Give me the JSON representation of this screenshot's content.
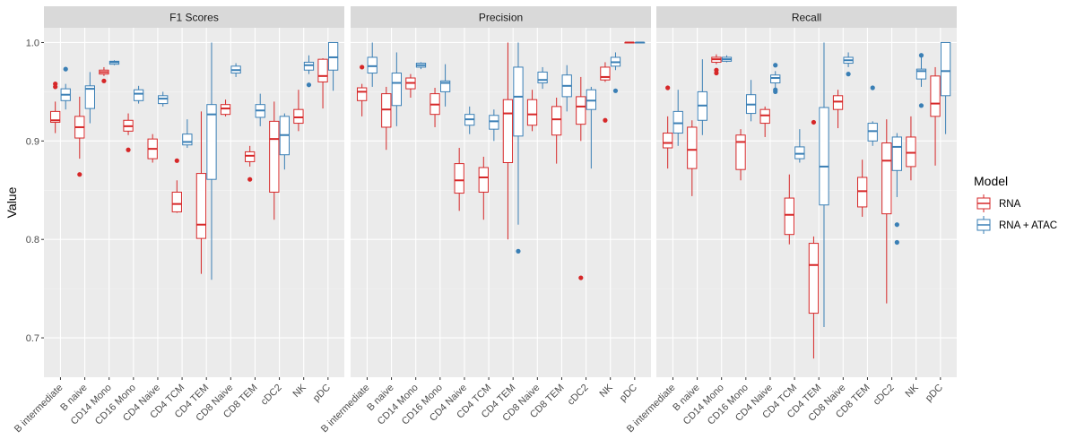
{
  "chart_data": {
    "type": "boxplot",
    "ylabel": "Value",
    "xlabel": "",
    "ylim": [
      0.66,
      1.015
    ],
    "yticks": [
      0.7,
      0.8,
      0.9,
      1.0
    ],
    "ytick_labels": [
      "0.7",
      "0.8",
      "0.9",
      "1.0"
    ],
    "categories": [
      "B intermediate",
      "B naive",
      "CD14 Mono",
      "CD16 Mono",
      "CD4 Naive",
      "CD4 TCM",
      "CD4 TEM",
      "CD8 Naive",
      "CD8 TEM",
      "cDC2",
      "NK",
      "pDC"
    ],
    "legend": {
      "title": "Model",
      "position": "right"
    },
    "series": [
      {
        "name": "RNA",
        "color": "#d62728"
      },
      {
        "name": "RNA + ATAC",
        "color": "#3a7fb5"
      }
    ],
    "panels": [
      {
        "title": "F1 Scores",
        "boxes": {
          "RNA": [
            {
              "min": 0.908,
              "q1": 0.919,
              "median": 0.921,
              "q3": 0.93,
              "max": 0.94,
              "outliers": [
                0.958,
                0.955
              ]
            },
            {
              "min": 0.882,
              "q1": 0.903,
              "median": 0.914,
              "q3": 0.925,
              "max": 0.945,
              "outliers": [
                0.866
              ]
            },
            {
              "min": 0.966,
              "q1": 0.968,
              "median": 0.97,
              "q3": 0.972,
              "max": 0.975,
              "outliers": [
                0.961
              ]
            },
            {
              "min": 0.906,
              "q1": 0.91,
              "median": 0.915,
              "q3": 0.921,
              "max": 0.928,
              "outliers": [
                0.891
              ]
            },
            {
              "min": 0.878,
              "q1": 0.882,
              "median": 0.892,
              "q3": 0.902,
              "max": 0.907,
              "outliers": []
            },
            {
              "min": 0.827,
              "q1": 0.828,
              "median": 0.836,
              "q3": 0.848,
              "max": 0.86,
              "outliers": [
                0.88
              ]
            },
            {
              "min": 0.765,
              "q1": 0.801,
              "median": 0.815,
              "q3": 0.867,
              "max": 0.93,
              "outliers": []
            },
            {
              "min": 0.925,
              "q1": 0.927,
              "median": 0.933,
              "q3": 0.937,
              "max": 0.942,
              "outliers": []
            },
            {
              "min": 0.874,
              "q1": 0.879,
              "median": 0.885,
              "q3": 0.889,
              "max": 0.895,
              "outliers": [
                0.861
              ]
            },
            {
              "min": 0.82,
              "q1": 0.848,
              "median": 0.902,
              "q3": 0.92,
              "max": 0.94,
              "outliers": []
            },
            {
              "min": 0.91,
              "q1": 0.918,
              "median": 0.924,
              "q3": 0.932,
              "max": 0.952,
              "outliers": []
            },
            {
              "min": 0.933,
              "q1": 0.96,
              "median": 0.966,
              "q3": 0.983,
              "max": 0.984,
              "outliers": []
            }
          ],
          "RNA + ATAC": [
            {
              "min": 0.932,
              "q1": 0.941,
              "median": 0.947,
              "q3": 0.953,
              "max": 0.958,
              "outliers": [
                0.973
              ]
            },
            {
              "min": 0.918,
              "q1": 0.933,
              "median": 0.953,
              "q3": 0.956,
              "max": 0.97,
              "outliers": []
            },
            {
              "min": 0.977,
              "q1": 0.978,
              "median": 0.98,
              "q3": 0.981,
              "max": 0.982,
              "outliers": []
            },
            {
              "min": 0.938,
              "q1": 0.941,
              "median": 0.948,
              "q3": 0.952,
              "max": 0.956,
              "outliers": []
            },
            {
              "min": 0.935,
              "q1": 0.938,
              "median": 0.943,
              "q3": 0.946,
              "max": 0.95,
              "outliers": []
            },
            {
              "min": 0.893,
              "q1": 0.896,
              "median": 0.899,
              "q3": 0.907,
              "max": 0.922,
              "outliers": []
            },
            {
              "min": 0.759,
              "q1": 0.861,
              "median": 0.927,
              "q3": 0.937,
              "max": 1.0,
              "outliers": []
            },
            {
              "min": 0.965,
              "q1": 0.969,
              "median": 0.972,
              "q3": 0.976,
              "max": 0.979,
              "outliers": []
            },
            {
              "min": 0.915,
              "q1": 0.924,
              "median": 0.931,
              "q3": 0.937,
              "max": 0.948,
              "outliers": []
            },
            {
              "min": 0.871,
              "q1": 0.886,
              "median": 0.906,
              "q3": 0.925,
              "max": 0.928,
              "outliers": []
            },
            {
              "min": 0.968,
              "q1": 0.972,
              "median": 0.977,
              "q3": 0.98,
              "max": 0.987,
              "outliers": [
                0.957
              ]
            },
            {
              "min": 0.951,
              "q1": 0.972,
              "median": 0.985,
              "q3": 1.0,
              "max": 1.0,
              "outliers": []
            }
          ]
        }
      },
      {
        "title": "Precision",
        "boxes": {
          "RNA": [
            {
              "min": 0.925,
              "q1": 0.941,
              "median": 0.95,
              "q3": 0.954,
              "max": 0.958,
              "outliers": [
                0.975
              ]
            },
            {
              "min": 0.891,
              "q1": 0.914,
              "median": 0.932,
              "q3": 0.948,
              "max": 0.955,
              "outliers": []
            },
            {
              "min": 0.944,
              "q1": 0.953,
              "median": 0.959,
              "q3": 0.964,
              "max": 0.968,
              "outliers": []
            },
            {
              "min": 0.914,
              "q1": 0.927,
              "median": 0.937,
              "q3": 0.948,
              "max": 0.954,
              "outliers": []
            },
            {
              "min": 0.829,
              "q1": 0.847,
              "median": 0.86,
              "q3": 0.877,
              "max": 0.893,
              "outliers": []
            },
            {
              "min": 0.82,
              "q1": 0.848,
              "median": 0.863,
              "q3": 0.873,
              "max": 0.884,
              "outliers": []
            },
            {
              "min": 0.8,
              "q1": 0.878,
              "median": 0.928,
              "q3": 0.942,
              "max": 1.0,
              "outliers": []
            },
            {
              "min": 0.91,
              "q1": 0.916,
              "median": 0.927,
              "q3": 0.942,
              "max": 0.952,
              "outliers": []
            },
            {
              "min": 0.877,
              "q1": 0.906,
              "median": 0.922,
              "q3": 0.935,
              "max": 0.944,
              "outliers": []
            },
            {
              "min": 0.9,
              "q1": 0.917,
              "median": 0.935,
              "q3": 0.945,
              "max": 0.965,
              "outliers": [
                0.761
              ]
            },
            {
              "min": 0.96,
              "q1": 0.962,
              "median": 0.965,
              "q3": 0.975,
              "max": 0.98,
              "outliers": [
                0.921
              ]
            },
            {
              "min": 1.0,
              "q1": 1.0,
              "median": 1.0,
              "q3": 1.0,
              "max": 1.0,
              "outliers": []
            }
          ],
          "RNA + ATAC": [
            {
              "min": 0.955,
              "q1": 0.969,
              "median": 0.976,
              "q3": 0.985,
              "max": 1.0,
              "outliers": []
            },
            {
              "min": 0.915,
              "q1": 0.936,
              "median": 0.959,
              "q3": 0.969,
              "max": 0.99,
              "outliers": []
            },
            {
              "min": 0.973,
              "q1": 0.975,
              "median": 0.977,
              "q3": 0.979,
              "max": 0.98,
              "outliers": []
            },
            {
              "min": 0.935,
              "q1": 0.95,
              "median": 0.959,
              "q3": 0.961,
              "max": 0.978,
              "outliers": []
            },
            {
              "min": 0.907,
              "q1": 0.916,
              "median": 0.922,
              "q3": 0.927,
              "max": 0.935,
              "outliers": []
            },
            {
              "min": 0.9,
              "q1": 0.912,
              "median": 0.92,
              "q3": 0.926,
              "max": 0.932,
              "outliers": []
            },
            {
              "min": 0.815,
              "q1": 0.905,
              "median": 0.945,
              "q3": 0.975,
              "max": 1.0,
              "outliers": [
                0.788
              ]
            },
            {
              "min": 0.953,
              "q1": 0.959,
              "median": 0.962,
              "q3": 0.97,
              "max": 0.975,
              "outliers": []
            },
            {
              "min": 0.93,
              "q1": 0.945,
              "median": 0.956,
              "q3": 0.967,
              "max": 0.977,
              "outliers": []
            },
            {
              "min": 0.872,
              "q1": 0.932,
              "median": 0.941,
              "q3": 0.952,
              "max": 0.955,
              "outliers": []
            },
            {
              "min": 0.972,
              "q1": 0.976,
              "median": 0.98,
              "q3": 0.985,
              "max": 0.99,
              "outliers": [
                0.951
              ]
            },
            {
              "min": 1.0,
              "q1": 1.0,
              "median": 1.0,
              "q3": 1.0,
              "max": 1.0,
              "outliers": []
            }
          ]
        }
      },
      {
        "title": "Recall",
        "boxes": {
          "RNA": [
            {
              "min": 0.872,
              "q1": 0.893,
              "median": 0.898,
              "q3": 0.908,
              "max": 0.925,
              "outliers": [
                0.954
              ]
            },
            {
              "min": 0.844,
              "q1": 0.872,
              "median": 0.891,
              "q3": 0.914,
              "max": 0.921,
              "outliers": []
            },
            {
              "min": 0.978,
              "q1": 0.98,
              "median": 0.983,
              "q3": 0.985,
              "max": 0.988,
              "outliers": [
                0.972,
                0.969
              ]
            },
            {
              "min": 0.86,
              "q1": 0.871,
              "median": 0.899,
              "q3": 0.906,
              "max": 0.912,
              "outliers": []
            },
            {
              "min": 0.904,
              "q1": 0.918,
              "median": 0.926,
              "q3": 0.932,
              "max": 0.935,
              "outliers": []
            },
            {
              "min": 0.795,
              "q1": 0.805,
              "median": 0.825,
              "q3": 0.842,
              "max": 0.866,
              "outliers": []
            },
            {
              "min": 0.679,
              "q1": 0.725,
              "median": 0.774,
              "q3": 0.796,
              "max": 0.803,
              "outliers": [
                0.919
              ]
            },
            {
              "min": 0.913,
              "q1": 0.932,
              "median": 0.94,
              "q3": 0.946,
              "max": 0.952,
              "outliers": []
            },
            {
              "min": 0.823,
              "q1": 0.833,
              "median": 0.849,
              "q3": 0.863,
              "max": 0.881,
              "outliers": []
            },
            {
              "min": 0.735,
              "q1": 0.826,
              "median": 0.88,
              "q3": 0.898,
              "max": 0.922,
              "outliers": []
            },
            {
              "min": 0.86,
              "q1": 0.874,
              "median": 0.888,
              "q3": 0.904,
              "max": 0.925,
              "outliers": []
            },
            {
              "min": 0.875,
              "q1": 0.925,
              "median": 0.938,
              "q3": 0.966,
              "max": 0.975,
              "outliers": []
            }
          ],
          "RNA + ATAC": [
            {
              "min": 0.895,
              "q1": 0.908,
              "median": 0.918,
              "q3": 0.93,
              "max": 0.952,
              "outliers": []
            },
            {
              "min": 0.906,
              "q1": 0.921,
              "median": 0.936,
              "q3": 0.95,
              "max": 0.983,
              "outliers": []
            },
            {
              "min": 0.98,
              "q1": 0.981,
              "median": 0.983,
              "q3": 0.985,
              "max": 0.987,
              "outliers": []
            },
            {
              "min": 0.92,
              "q1": 0.928,
              "median": 0.937,
              "q3": 0.947,
              "max": 0.962,
              "outliers": []
            },
            {
              "min": 0.954,
              "q1": 0.959,
              "median": 0.964,
              "q3": 0.967,
              "max": 0.971,
              "outliers": [
                0.977,
                0.952,
                0.95
              ]
            },
            {
              "min": 0.878,
              "q1": 0.882,
              "median": 0.887,
              "q3": 0.894,
              "max": 0.912,
              "outliers": []
            },
            {
              "min": 0.711,
              "q1": 0.835,
              "median": 0.874,
              "q3": 0.934,
              "max": 1.0,
              "outliers": []
            },
            {
              "min": 0.975,
              "q1": 0.979,
              "median": 0.982,
              "q3": 0.985,
              "max": 0.99,
              "outliers": [
                0.968
              ]
            },
            {
              "min": 0.895,
              "q1": 0.9,
              "median": 0.91,
              "q3": 0.918,
              "max": 0.92,
              "outliers": [
                0.954
              ]
            },
            {
              "min": 0.843,
              "q1": 0.87,
              "median": 0.894,
              "q3": 0.904,
              "max": 0.908,
              "outliers": [
                0.815,
                0.797
              ]
            },
            {
              "min": 0.955,
              "q1": 0.963,
              "median": 0.971,
              "q3": 0.973,
              "max": 0.985,
              "outliers": [
                0.987,
                0.936
              ]
            },
            {
              "min": 0.907,
              "q1": 0.946,
              "median": 0.971,
              "q3": 1.0,
              "max": 1.0,
              "outliers": []
            }
          ]
        }
      }
    ]
  }
}
